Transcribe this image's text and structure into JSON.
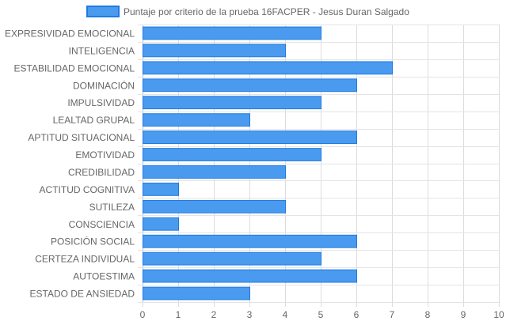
{
  "chart_data": {
    "type": "bar",
    "orientation": "horizontal",
    "title": "",
    "xlabel": "",
    "ylabel": "",
    "legend_position": "top",
    "grid": true,
    "xlim": [
      0,
      10
    ],
    "x_ticks": [
      0,
      1,
      2,
      3,
      4,
      5,
      6,
      7,
      8,
      9,
      10
    ],
    "categories": [
      "EXPRESIVIDAD EMOCIONAL",
      "INTELIGENCIA",
      "ESTABILIDAD EMOCIONAL",
      "DOMINACIÓN",
      "IMPULSIVIDAD",
      "LEALTAD GRUPAL",
      "APTITUD SITUACIONAL",
      "EMOTIVIDAD",
      "CREDIBILIDAD",
      "ACTITUD COGNITIVA",
      "SUTILEZA",
      "CONSCIENCIA",
      "POSICIÓN SOCIAL",
      "CERTEZA INDIVIDUAL",
      "AUTOESTIMA",
      "ESTADO DE ANSIEDAD"
    ],
    "series": [
      {
        "name": "Puntaje por criterio de la prueba 16FACPER - Jesus Duran Salgado",
        "values": [
          5,
          4,
          7,
          6,
          5,
          3,
          6,
          5,
          4,
          1,
          4,
          1,
          6,
          5,
          6,
          3
        ],
        "color": "#4a9bf0",
        "border_color": "#1f7ae0"
      }
    ]
  }
}
